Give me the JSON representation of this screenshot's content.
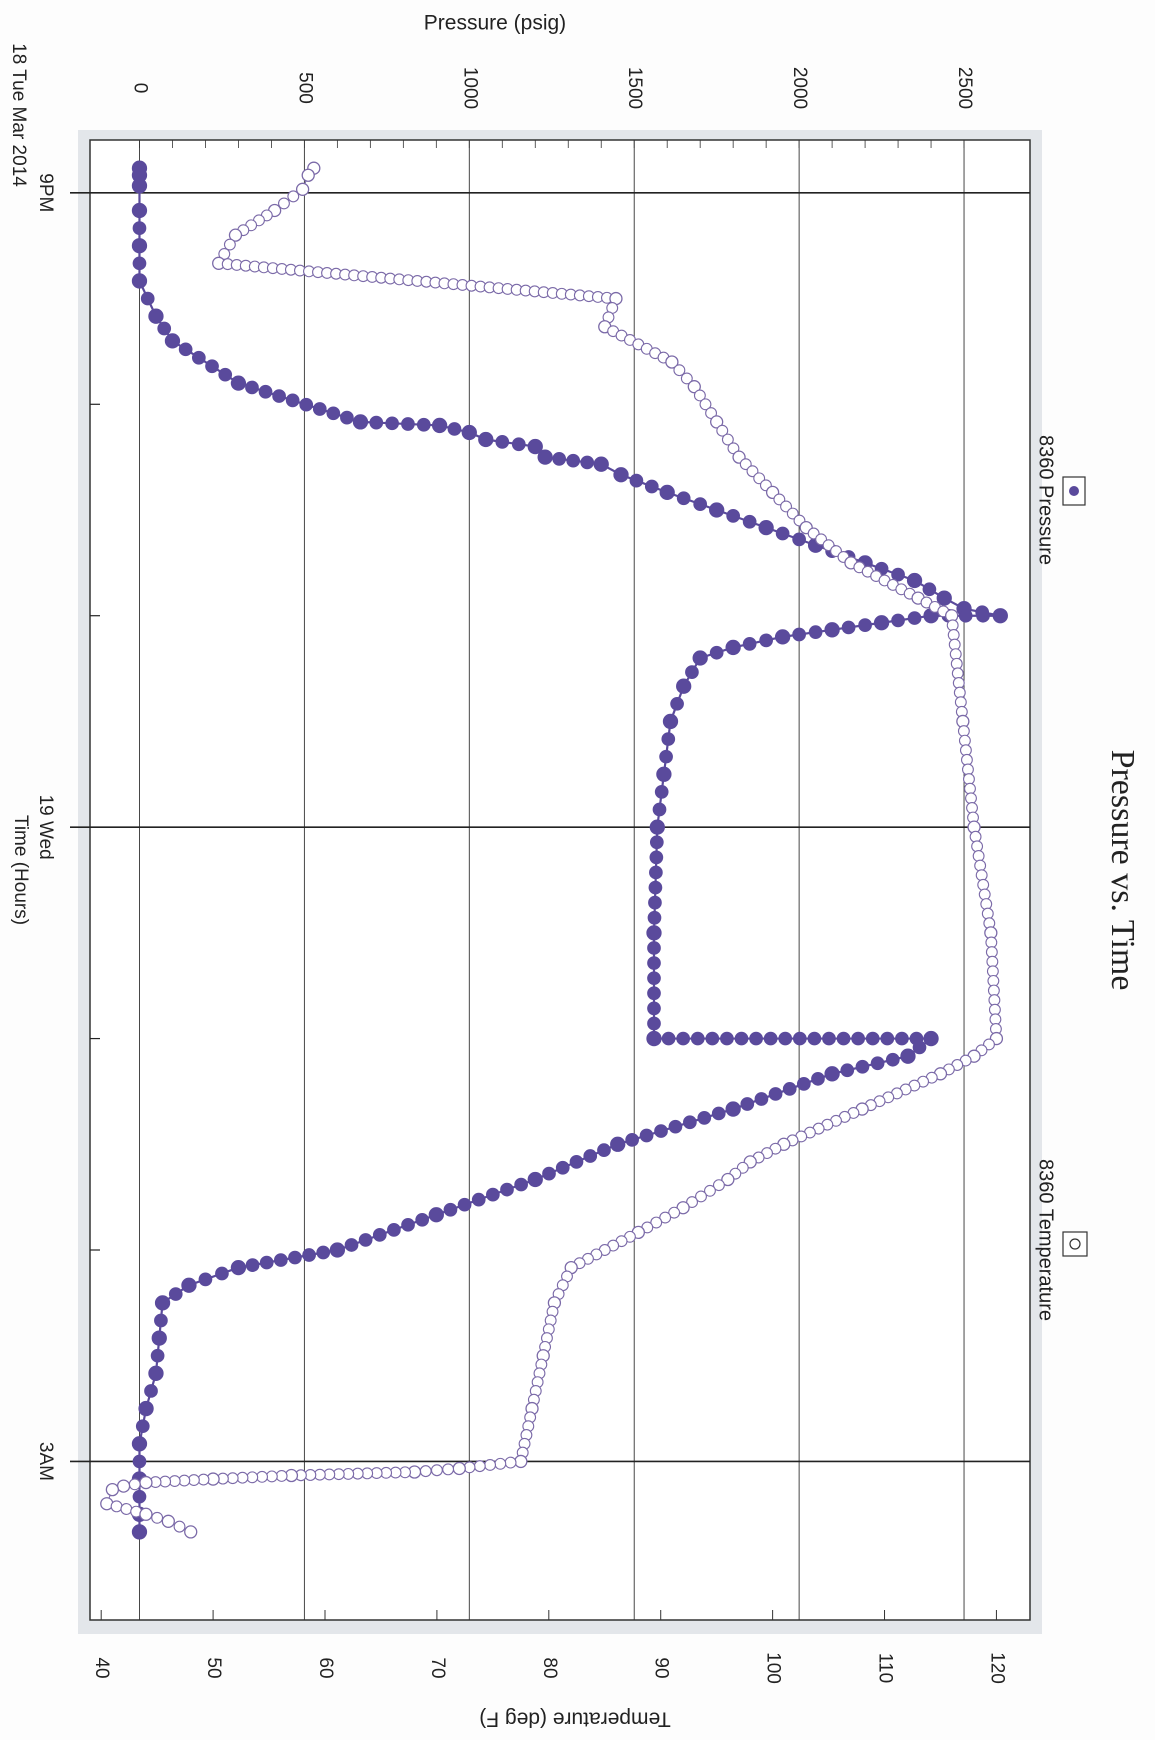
{
  "chart_data": {
    "type": "line",
    "title": "Pressure vs. Time",
    "xlabel": "Time (Hours)",
    "ylabel": "Pressure (psig)",
    "y2label": "Temperature (deg F)",
    "orientation": "rotated-90-clockwise",
    "x_range": [
      "2014-03-18T20:45",
      "2014-03-19T03:45"
    ],
    "x_ticks": [
      {
        "time": "2014-03-18T21:00",
        "label": "9PM",
        "major": true
      },
      {
        "time": "2014-03-18T22:00",
        "label": "",
        "major": false
      },
      {
        "time": "2014-03-18T23:00",
        "label": "",
        "major": false
      },
      {
        "time": "2014-03-19T00:00",
        "label": "19 Wed",
        "major": true
      },
      {
        "time": "2014-03-19T01:00",
        "label": "",
        "major": false
      },
      {
        "time": "2014-03-19T02:00",
        "label": "",
        "major": false
      },
      {
        "time": "2014-03-19T03:00",
        "label": "3AM",
        "major": true
      }
    ],
    "date_label": "18 Tue Mar 2014",
    "ylim": [
      -150,
      2700
    ],
    "y_ticks": [
      0,
      500,
      1000,
      1500,
      2000,
      2500
    ],
    "y2lim": [
      39,
      123
    ],
    "y2_ticks": [
      40,
      50,
      60,
      70,
      80,
      90,
      100,
      110,
      120
    ],
    "grid": true,
    "legend": [
      {
        "name": "8360 Pressure",
        "marker": "filled-circle",
        "placement": "top-left"
      },
      {
        "name": "8360 Temperature",
        "marker": "open-circle",
        "placement": "top-right"
      }
    ],
    "colors": {
      "pressure": "#5a4a9c",
      "temperature": "#7b6aa8",
      "grid": "#333333"
    },
    "series": [
      {
        "name": "8360 Pressure",
        "axis": "left",
        "points": [
          [
            "2014-03-18T20:53",
            0
          ],
          [
            "2014-03-18T20:55",
            0
          ],
          [
            "2014-03-18T20:58",
            0
          ],
          [
            "2014-03-18T21:05",
            0
          ],
          [
            "2014-03-18T21:15",
            0
          ],
          [
            "2014-03-18T21:25",
            0
          ],
          [
            "2014-03-18T21:35",
            50
          ],
          [
            "2014-03-18T21:42",
            100
          ],
          [
            "2014-03-18T21:54",
            300
          ],
          [
            "2014-03-18T22:05",
            670
          ],
          [
            "2014-03-18T22:06",
            910
          ],
          [
            "2014-03-18T22:08",
            1000
          ],
          [
            "2014-03-18T22:10",
            1050
          ],
          [
            "2014-03-18T22:12",
            1200
          ],
          [
            "2014-03-18T22:15",
            1230
          ],
          [
            "2014-03-18T22:17",
            1400
          ],
          [
            "2014-03-18T22:20",
            1460
          ],
          [
            "2014-03-18T22:25",
            1600
          ],
          [
            "2014-03-18T22:30",
            1750
          ],
          [
            "2014-03-18T22:35",
            1900
          ],
          [
            "2014-03-18T22:40",
            2050
          ],
          [
            "2014-03-18T22:45",
            2200
          ],
          [
            "2014-03-18T22:50",
            2350
          ],
          [
            "2014-03-18T22:55",
            2440
          ],
          [
            "2014-03-18T22:58",
            2500
          ],
          [
            "2014-03-18T23:00",
            2610
          ],
          [
            "2014-03-18T23:00",
            2400
          ],
          [
            "2014-03-18T23:02",
            2250
          ],
          [
            "2014-03-18T23:04",
            2100
          ],
          [
            "2014-03-18T23:06",
            1950
          ],
          [
            "2014-03-18T23:09",
            1800
          ],
          [
            "2014-03-18T23:12",
            1700
          ],
          [
            "2014-03-18T23:20",
            1650
          ],
          [
            "2014-03-18T23:30",
            1610
          ],
          [
            "2014-03-18T23:45",
            1590
          ],
          [
            "2014-03-19T00:00",
            1570
          ],
          [
            "2014-03-19T00:30",
            1560
          ],
          [
            "2014-03-19T01:00",
            1560
          ],
          [
            "2014-03-19T01:00",
            2400
          ],
          [
            "2014-03-19T01:05",
            2330
          ],
          [
            "2014-03-19T01:10",
            2100
          ],
          [
            "2014-03-19T01:20",
            1800
          ],
          [
            "2014-03-19T01:30",
            1450
          ],
          [
            "2014-03-19T01:40",
            1200
          ],
          [
            "2014-03-19T01:50",
            900
          ],
          [
            "2014-03-19T02:00",
            600
          ],
          [
            "2014-03-19T02:05",
            300
          ],
          [
            "2014-03-19T02:10",
            150
          ],
          [
            "2014-03-19T02:15",
            70
          ],
          [
            "2014-03-19T02:25",
            60
          ],
          [
            "2014-03-19T02:35",
            50
          ],
          [
            "2014-03-19T02:45",
            20
          ],
          [
            "2014-03-19T02:55",
            0
          ],
          [
            "2014-03-19T03:05",
            0
          ],
          [
            "2014-03-19T03:15",
            0
          ],
          [
            "2014-03-19T03:20",
            0
          ]
        ]
      },
      {
        "name": "8360 Temperature",
        "axis": "right",
        "points": [
          [
            "2014-03-18T20:53",
            59
          ],
          [
            "2014-03-18T20:55",
            58.5
          ],
          [
            "2014-03-18T20:59",
            58
          ],
          [
            "2014-03-18T21:05",
            55.5
          ],
          [
            "2014-03-18T21:12",
            52
          ],
          [
            "2014-03-18T21:20",
            50.5
          ],
          [
            "2014-03-18T21:30",
            86
          ],
          [
            "2014-03-18T21:38",
            85
          ],
          [
            "2014-03-18T21:48",
            91
          ],
          [
            "2014-03-18T21:55",
            93
          ],
          [
            "2014-03-18T22:05",
            95
          ],
          [
            "2014-03-18T22:15",
            97
          ],
          [
            "2014-03-18T22:25",
            100
          ],
          [
            "2014-03-18T22:35",
            103
          ],
          [
            "2014-03-18T22:45",
            107
          ],
          [
            "2014-03-18T22:55",
            113
          ],
          [
            "2014-03-18T23:00",
            116
          ],
          [
            "2014-03-18T23:30",
            117
          ],
          [
            "2014-03-19T00:00",
            118
          ],
          [
            "2014-03-19T00:30",
            119.5
          ],
          [
            "2014-03-19T01:00",
            120
          ],
          [
            "2014-03-19T01:05",
            118
          ],
          [
            "2014-03-19T01:10",
            115
          ],
          [
            "2014-03-19T01:20",
            108
          ],
          [
            "2014-03-19T01:30",
            101
          ],
          [
            "2014-03-19T01:35",
            98
          ],
          [
            "2014-03-19T01:40",
            96
          ],
          [
            "2014-03-19T01:48",
            92
          ],
          [
            "2014-03-19T01:55",
            88
          ],
          [
            "2014-03-19T02:05",
            82
          ],
          [
            "2014-03-19T02:15",
            80.5
          ],
          [
            "2014-03-19T02:30",
            79.5
          ],
          [
            "2014-03-19T02:45",
            78.5
          ],
          [
            "2014-03-19T03:00",
            77.5
          ],
          [
            "2014-03-19T03:02",
            72
          ],
          [
            "2014-03-19T03:03",
            68
          ],
          [
            "2014-03-19T03:04",
            57
          ],
          [
            "2014-03-19T03:05",
            50
          ],
          [
            "2014-03-19T03:06",
            44
          ],
          [
            "2014-03-19T03:07",
            42
          ],
          [
            "2014-03-19T03:08",
            41
          ],
          [
            "2014-03-19T03:12",
            40.5
          ],
          [
            "2014-03-19T03:15",
            44
          ],
          [
            "2014-03-19T03:17",
            46
          ],
          [
            "2014-03-19T03:20",
            48
          ]
        ]
      }
    ]
  }
}
